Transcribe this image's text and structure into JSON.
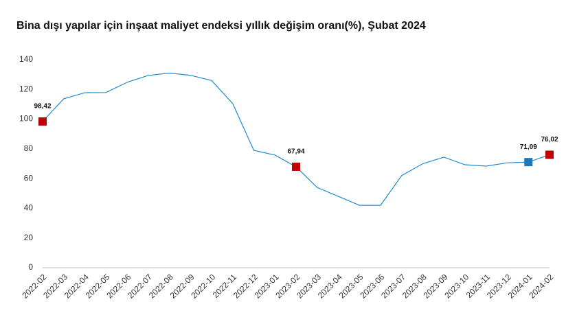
{
  "chart_data": {
    "type": "line",
    "title": "Bina dışı yapılar için inşaat maliyet endeksi yıllık değişim oranı(%), Şubat 2024",
    "categories": [
      "2022-02",
      "2022-03",
      "2022-04",
      "2022-05",
      "2022-06",
      "2022-07",
      "2022-08",
      "2022-09",
      "2022-10",
      "2022-11",
      "2022-12",
      "2023-01",
      "2023-02",
      "2023-03",
      "2023-04",
      "2023-05",
      "2023-06",
      "2023-07",
      "2023-08",
      "2023-09",
      "2023-10",
      "2023-11",
      "2023-12",
      "2024-01",
      "2024-02"
    ],
    "values": [
      98.42,
      113.7,
      117.8,
      117.9,
      124.8,
      129.4,
      131,
      129.5,
      126,
      110.5,
      79,
      75.8,
      67.94,
      54,
      48,
      42,
      42,
      62,
      70,
      74.4,
      69.3,
      68.4,
      70.6,
      71.09,
      76.02
    ],
    "value_labels": [
      "98,42",
      null,
      null,
      null,
      null,
      null,
      null,
      null,
      null,
      null,
      null,
      null,
      "67,94",
      null,
      null,
      null,
      null,
      null,
      null,
      null,
      null,
      null,
      null,
      "71,09",
      "76,02"
    ],
    "marker_colors": [
      "#c00000",
      null,
      null,
      null,
      null,
      null,
      null,
      null,
      null,
      null,
      null,
      null,
      "#c00000",
      null,
      null,
      null,
      null,
      null,
      null,
      null,
      null,
      null,
      null,
      "#1f77b4",
      "#c00000"
    ],
    "color": "#1f8ad0",
    "ylim": [
      0,
      140
    ],
    "yticks": [
      0,
      20,
      40,
      60,
      80,
      100,
      120,
      140
    ],
    "grid": false
  }
}
